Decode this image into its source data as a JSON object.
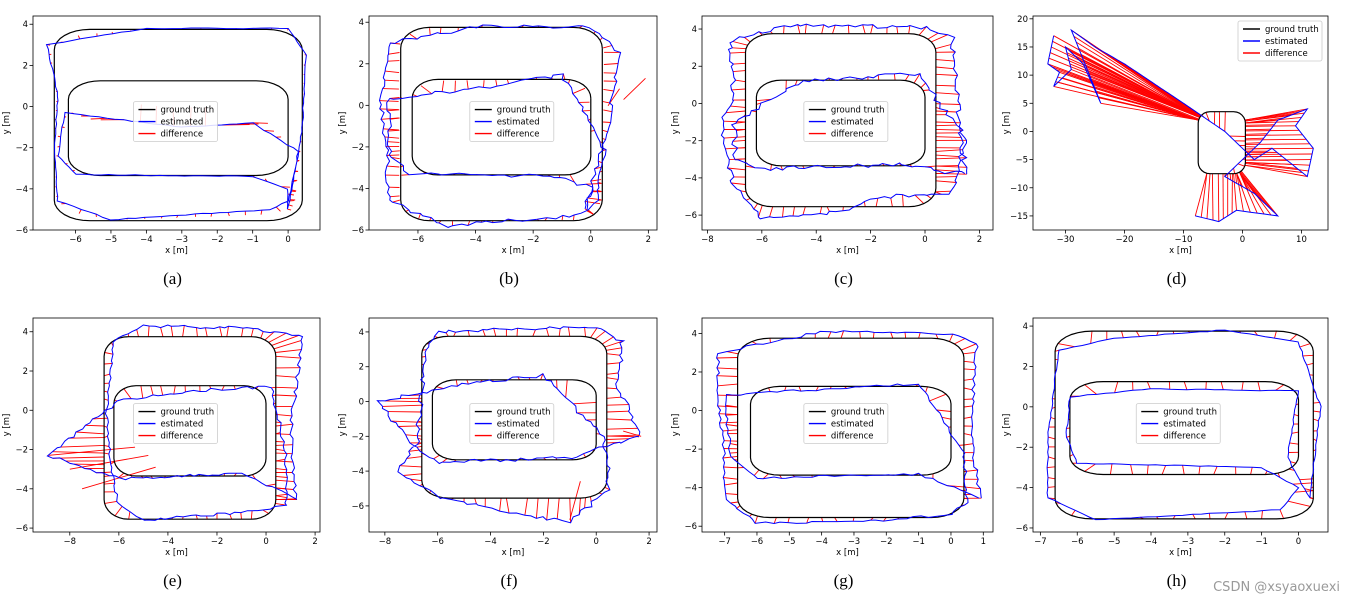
{
  "watermark": "CSDN @xsyaoxuexi",
  "colors": {
    "ground_truth": "#000000",
    "estimated": "#0000ff",
    "difference": "#ff0000"
  },
  "chart_data": [
    {
      "panel": "(a)",
      "type": "line",
      "xlabel": "x [m]",
      "ylabel": "y [m]",
      "xlim": [
        -7.2,
        0.9
      ],
      "ylim": [
        -6.0,
        4.4
      ],
      "xticks": [
        -6,
        -5,
        -4,
        -3,
        -2,
        -1,
        0
      ],
      "yticks": [
        -6,
        -4,
        -2,
        0,
        2,
        4
      ],
      "legend": {
        "position": "center",
        "entries": [
          "ground truth",
          "estimated",
          "difference"
        ]
      },
      "shape": "figure-eight",
      "noise": 0.04,
      "diffs": 0.12,
      "outliers": [],
      "estimated_path": [
        [
          0.0,
          -5.0
        ],
        [
          0.4,
          -1.0
        ],
        [
          0.5,
          2.5
        ],
        [
          0.0,
          3.8
        ],
        [
          -4.0,
          3.8
        ],
        [
          -6.8,
          3.0
        ],
        [
          -6.5,
          0.5
        ],
        [
          -6.6,
          -2.0
        ],
        [
          -6.5,
          -4.6
        ],
        [
          -5.0,
          -5.5
        ],
        [
          -0.5,
          -5.0
        ],
        [
          0.0,
          -4.6
        ],
        [
          0.3,
          -2.2
        ],
        [
          -1.0,
          -0.8
        ],
        [
          -3.0,
          -1.0
        ],
        [
          -6.3,
          -0.3
        ],
        [
          -6.5,
          -2.4
        ],
        [
          -6.0,
          -3.3
        ],
        [
          -1.0,
          -3.4
        ],
        [
          0.0,
          -4.0
        ],
        [
          0.0,
          -5.0
        ]
      ]
    },
    {
      "panel": "(b)",
      "type": "line",
      "xlabel": "x [m]",
      "ylabel": "y [m]",
      "xlim": [
        -7.7,
        2.3
      ],
      "ylim": [
        -6.0,
        4.3
      ],
      "xticks": [
        -6,
        -4,
        -2,
        0,
        2
      ],
      "yticks": [
        -6,
        -4,
        -2,
        0,
        2,
        4
      ],
      "legend": {
        "position": "center",
        "entries": [
          "ground truth",
          "estimated",
          "difference"
        ]
      },
      "shape": "figure-eight",
      "noise": 0.18,
      "diffs": 0.6,
      "outliers": [
        [
          1.9,
          1.3
        ],
        [
          1.0,
          0.8
        ]
      ],
      "estimated_path": [
        [
          -0.2,
          -5.0
        ],
        [
          0.6,
          -1.0
        ],
        [
          1.0,
          2.5
        ],
        [
          0.0,
          3.8
        ],
        [
          -4.0,
          3.8
        ],
        [
          -7.0,
          3.0
        ],
        [
          -7.3,
          0.5
        ],
        [
          -7.1,
          -2.0
        ],
        [
          -7.0,
          -4.6
        ],
        [
          -5.0,
          -5.8
        ],
        [
          -0.5,
          -5.3
        ],
        [
          0.2,
          -4.6
        ],
        [
          0.5,
          -2.2
        ],
        [
          -1.0,
          1.5
        ],
        [
          -3.0,
          1.0
        ],
        [
          -7.0,
          0.3
        ],
        [
          -7.0,
          -2.4
        ],
        [
          -6.3,
          -3.3
        ],
        [
          -1.0,
          -3.4
        ],
        [
          0.0,
          -4.0
        ],
        [
          -0.2,
          -5.0
        ]
      ]
    },
    {
      "panel": "(c)",
      "type": "line",
      "xlabel": "x [m]",
      "ylabel": "y [m]",
      "xlim": [
        -8.2,
        2.5
      ],
      "ylim": [
        -6.8,
        4.7
      ],
      "xticks": [
        -8,
        -6,
        -4,
        -2,
        0,
        2
      ],
      "yticks": [
        -6,
        -4,
        -2,
        0,
        2,
        4
      ],
      "legend": {
        "position": "center",
        "entries": [
          "ground truth",
          "estimated",
          "difference"
        ]
      },
      "shape": "figure-eight",
      "noise": 0.22,
      "diffs": 0.85,
      "outliers": [],
      "estimated_path": [
        [
          1.5,
          -3.8
        ],
        [
          1.2,
          0.0
        ],
        [
          1.0,
          3.5
        ],
        [
          0.0,
          4.1
        ],
        [
          -5.0,
          4.2
        ],
        [
          -7.2,
          3.3
        ],
        [
          -7.0,
          0.5
        ],
        [
          -7.5,
          -1.0
        ],
        [
          -7.0,
          -4.6
        ],
        [
          -6.0,
          -6.2
        ],
        [
          -3.0,
          -5.8
        ],
        [
          -1.5,
          -5.0
        ],
        [
          1.0,
          -4.8
        ],
        [
          1.5,
          -2.0
        ],
        [
          -0.2,
          1.6
        ],
        [
          -4.5,
          1.2
        ],
        [
          -7.0,
          -1.0
        ],
        [
          -7.0,
          -3.0
        ],
        [
          -6.0,
          -3.5
        ],
        [
          -1.0,
          -3.3
        ],
        [
          1.5,
          -3.8
        ]
      ]
    },
    {
      "panel": "(d)",
      "type": "line",
      "xlabel": "x [m]",
      "ylabel": "y [m]",
      "xlim": [
        -35.5,
        14.5
      ],
      "ylim": [
        -17.5,
        20.5
      ],
      "xticks": [
        -30,
        -20,
        -10,
        0,
        10
      ],
      "yticks": [
        -15,
        -10,
        -5,
        0,
        5,
        10,
        15,
        20
      ],
      "legend": {
        "position": "top-right",
        "entries": [
          "ground truth",
          "estimated",
          "difference"
        ]
      },
      "shape": "figure-eight",
      "noise": 0.0,
      "diffs": 1.0,
      "outliers": [],
      "estimated_path": [
        [
          -32.0,
          17.0
        ],
        [
          -33.0,
          12.0
        ],
        [
          -31.0,
          10.5
        ],
        [
          -32.0,
          8.0
        ],
        [
          -29.0,
          11.0
        ],
        [
          -30.0,
          15.0
        ],
        [
          -27.0,
          12.0
        ],
        [
          -24.0,
          5.0
        ],
        [
          -29.0,
          18.0
        ],
        [
          -25.0,
          15.0
        ],
        [
          -20.0,
          12.0
        ],
        [
          -10.0,
          5.0
        ],
        [
          -3.0,
          0.0
        ],
        [
          2.0,
          -5.0
        ],
        [
          5.0,
          -3.0
        ],
        [
          11.0,
          -8.0
        ],
        [
          12.0,
          -3.0
        ],
        [
          9.0,
          1.0
        ],
        [
          11.0,
          4.0
        ],
        [
          6.0,
          2.0
        ],
        [
          3.0,
          -2.0
        ],
        [
          0.0,
          -5.0
        ],
        [
          -3.0,
          -8.0
        ],
        [
          2.0,
          -11.0
        ],
        [
          6.0,
          -15.0
        ],
        [
          -1.0,
          -14.0
        ],
        [
          -4.0,
          -16.0
        ],
        [
          -8.0,
          -15.0
        ]
      ]
    },
    {
      "panel": "(e)",
      "type": "line",
      "xlabel": "x [m]",
      "ylabel": "y [m]",
      "xlim": [
        -9.5,
        2.2
      ],
      "ylim": [
        -6.2,
        4.7
      ],
      "xticks": [
        -8,
        -6,
        -4,
        -2,
        0,
        2
      ],
      "yticks": [
        -6,
        -4,
        -2,
        0,
        2,
        4
      ],
      "legend": {
        "position": "center",
        "entries": [
          "ground truth",
          "estimated",
          "difference"
        ]
      },
      "shape": "figure-eight",
      "noise": 0.15,
      "diffs": 0.95,
      "outliers": [
        [
          -8.9,
          -2.3
        ],
        [
          -8.0,
          -3.0
        ],
        [
          -7.5,
          -4.0
        ]
      ],
      "estimated_path": [
        [
          1.2,
          -4.5
        ],
        [
          1.0,
          -1.0
        ],
        [
          1.5,
          3.8
        ],
        [
          -1.0,
          4.2
        ],
        [
          -5.0,
          4.3
        ],
        [
          -6.2,
          3.5
        ],
        [
          -6.5,
          0.5
        ],
        [
          -6.4,
          -2.5
        ],
        [
          -6.0,
          -4.8
        ],
        [
          -5.0,
          -5.6
        ],
        [
          -1.0,
          -5.2
        ],
        [
          0.8,
          -4.9
        ],
        [
          0.8,
          -2.0
        ],
        [
          0.2,
          1.2
        ],
        [
          -3.0,
          1.0
        ],
        [
          -6.0,
          0.5
        ],
        [
          -8.9,
          -2.3
        ],
        [
          -6.0,
          -3.5
        ],
        [
          -1.0,
          -3.2
        ],
        [
          0.5,
          -4.0
        ],
        [
          1.2,
          -4.5
        ]
      ]
    },
    {
      "panel": "(f)",
      "type": "line",
      "xlabel": "x [m]",
      "ylabel": "y [m]",
      "xlim": [
        -8.6,
        2.3
      ],
      "ylim": [
        -7.5,
        4.8
      ],
      "xticks": [
        -8,
        -6,
        -4,
        -2,
        0,
        2
      ],
      "yticks": [
        -6,
        -4,
        -2,
        0,
        2,
        4
      ],
      "legend": {
        "position": "center",
        "entries": [
          "ground truth",
          "estimated",
          "difference"
        ]
      },
      "shape": "figure-eight",
      "noise": 0.2,
      "diffs": 0.7,
      "outliers": [
        [
          1.7,
          -2.0
        ],
        [
          -1.0,
          -6.8
        ]
      ],
      "estimated_path": [
        [
          1.7,
          -2.0
        ],
        [
          0.8,
          1.0
        ],
        [
          1.0,
          3.5
        ],
        [
          0.0,
          4.3
        ],
        [
          -6.0,
          4.0
        ],
        [
          -6.5,
          3.0
        ],
        [
          -6.6,
          0.5
        ],
        [
          -6.8,
          -2.5
        ],
        [
          -7.5,
          -4.0
        ],
        [
          -6.0,
          -5.5
        ],
        [
          -3.0,
          -6.5
        ],
        [
          -1.0,
          -6.9
        ],
        [
          0.5,
          -5.0
        ],
        [
          0.3,
          -2.0
        ],
        [
          -2.0,
          1.5
        ],
        [
          -5.0,
          1.0
        ],
        [
          -8.2,
          0.0
        ],
        [
          -7.0,
          -2.5
        ],
        [
          -6.0,
          -3.5
        ],
        [
          -1.0,
          -3.2
        ],
        [
          1.7,
          -2.0
        ]
      ]
    },
    {
      "panel": "(g)",
      "type": "line",
      "xlabel": "x [m]",
      "ylabel": "y [m]",
      "xlim": [
        -7.7,
        1.3
      ],
      "ylim": [
        -6.3,
        4.8
      ],
      "xticks": [
        -7,
        -6,
        -5,
        -4,
        -3,
        -2,
        -1,
        0,
        1
      ],
      "yticks": [
        -6,
        -4,
        -2,
        0,
        2,
        4
      ],
      "legend": {
        "position": "center",
        "entries": [
          "ground truth",
          "estimated",
          "difference"
        ]
      },
      "shape": "figure-eight",
      "noise": 0.12,
      "diffs": 0.85,
      "outliers": [],
      "estimated_path": [
        [
          0.9,
          -4.5
        ],
        [
          0.6,
          -1.0
        ],
        [
          0.8,
          3.5
        ],
        [
          0.0,
          4.0
        ],
        [
          -4.0,
          4.1
        ],
        [
          -7.2,
          3.0
        ],
        [
          -7.2,
          0.5
        ],
        [
          -7.0,
          -2.0
        ],
        [
          -7.0,
          -4.6
        ],
        [
          -6.0,
          -5.8
        ],
        [
          -3.0,
          -5.8
        ],
        [
          0.0,
          -5.4
        ],
        [
          0.5,
          -4.8
        ],
        [
          0.4,
          -2.2
        ],
        [
          -1.0,
          1.4
        ],
        [
          -3.0,
          1.2
        ],
        [
          -7.0,
          0.8
        ],
        [
          -6.8,
          -2.4
        ],
        [
          -6.0,
          -3.5
        ],
        [
          -1.0,
          -3.3
        ],
        [
          0.9,
          -4.5
        ]
      ]
    },
    {
      "panel": "(h)",
      "type": "line",
      "xlabel": "x [m]",
      "ylabel": "y [m]",
      "xlim": [
        -7.2,
        0.8
      ],
      "ylim": [
        -6.2,
        4.4
      ],
      "xticks": [
        -7,
        -6,
        -5,
        -4,
        -3,
        -2,
        -1,
        0
      ],
      "yticks": [
        -6,
        -4,
        -2,
        0,
        2,
        4
      ],
      "legend": {
        "position": "center",
        "entries": [
          "ground truth",
          "estimated",
          "difference"
        ]
      },
      "shape": "figure-eight",
      "noise": 0.04,
      "diffs": 0.85,
      "outliers": [],
      "estimated_path": [
        [
          0.3,
          -4.5
        ],
        [
          -0.3,
          -2.5
        ],
        [
          0.0,
          0.8
        ],
        [
          -0.8,
          0.8
        ],
        [
          -4.0,
          0.9
        ],
        [
          -6.2,
          0.5
        ],
        [
          -6.3,
          -1.5
        ],
        [
          -6.0,
          -2.8
        ],
        [
          -1.0,
          -3.0
        ],
        [
          0.0,
          -4.0
        ],
        [
          -0.5,
          -5.1
        ],
        [
          -5.5,
          -5.6
        ],
        [
          -6.8,
          -4.5
        ],
        [
          -6.8,
          -1.5
        ],
        [
          -6.5,
          2.8
        ],
        [
          -5.0,
          3.4
        ],
        [
          -2.0,
          3.8
        ],
        [
          0.0,
          3.2
        ],
        [
          0.6,
          0.0
        ],
        [
          0.3,
          -4.5
        ]
      ]
    }
  ]
}
